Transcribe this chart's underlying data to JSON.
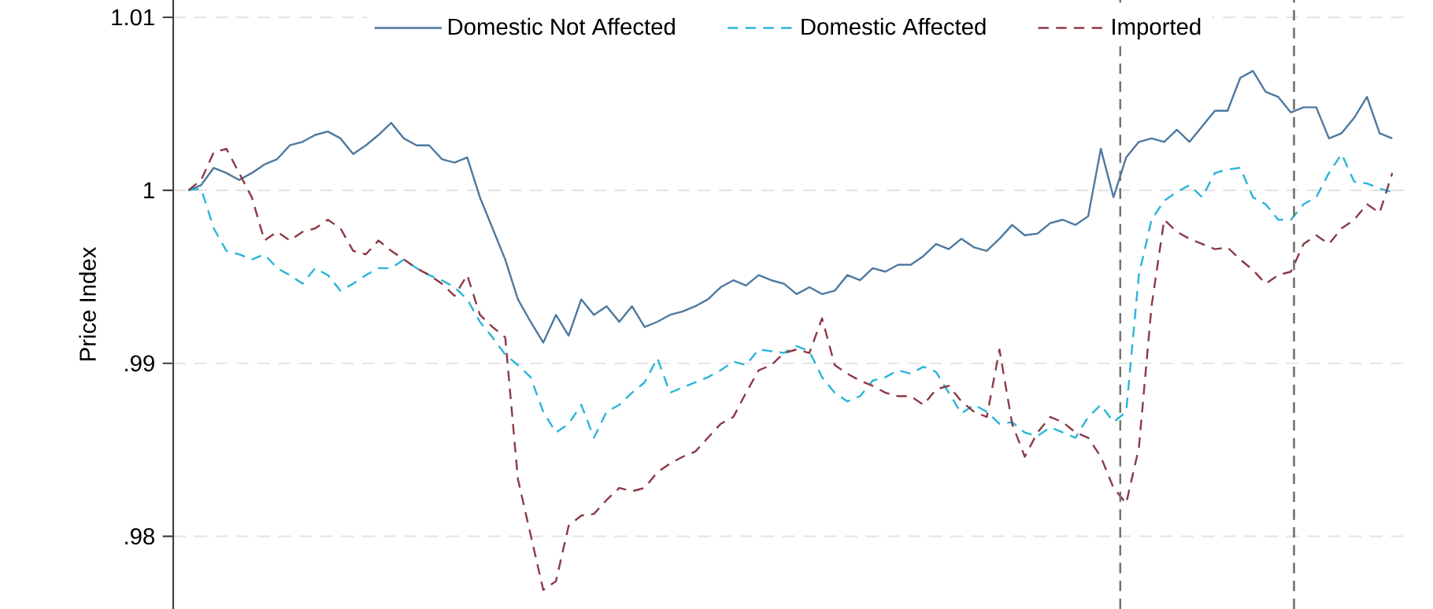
{
  "chart_data": {
    "type": "line",
    "ylabel": "Price Index",
    "categories": [
      null,
      null,
      null,
      null,
      null,
      null,
      null,
      null,
      null,
      null,
      null,
      null,
      null,
      null,
      null,
      null,
      null,
      null,
      null,
      null,
      null,
      null,
      null,
      null,
      null,
      null,
      null,
      null,
      null,
      null,
      null,
      null,
      null,
      null,
      null,
      null,
      null,
      null,
      null,
      null,
      null,
      null,
      null,
      null,
      null,
      null,
      null,
      null,
      null,
      null,
      null,
      null,
      null,
      null,
      null,
      null,
      null,
      null,
      null,
      null,
      null,
      null,
      null,
      null,
      null,
      null,
      null,
      null,
      null,
      null,
      null,
      null,
      null,
      null,
      null,
      null,
      null,
      null,
      null,
      null,
      null,
      null,
      null,
      null,
      null,
      null,
      null,
      null,
      null,
      null,
      null,
      null,
      null,
      null,
      null,
      null
    ],
    "ylim": [
      0.9758,
      1.011
    ],
    "yticks": [
      {
        "value": 0.98,
        "label": ".98"
      },
      {
        "value": 0.99,
        "label": ".99"
      },
      {
        "value": 1,
        "label": "1"
      },
      {
        "value": 1.01,
        "label": "1.01"
      }
    ],
    "tick_labels": "y",
    "grid": "y",
    "legend": "top",
    "marker": "none",
    "series": [
      {
        "name": "Domestic Not Affected",
        "color": "#4e79a0",
        "line_style": "solid",
        "values": [
          1.0,
          1.0003,
          1.0013,
          1.001,
          1.0006,
          1.001,
          1.0015,
          1.0018,
          1.0026,
          1.0028,
          1.0032,
          1.0034,
          1.003,
          1.0021,
          1.0026,
          1.0032,
          1.0039,
          1.003,
          1.0026,
          1.0026,
          1.0018,
          1.0016,
          1.0019,
          0.9996,
          0.9978,
          0.996,
          0.9937,
          0.9924,
          0.9912,
          0.9928,
          0.9916,
          0.9937,
          0.9928,
          0.9933,
          0.9924,
          0.9933,
          0.9921,
          0.9924,
          0.9928,
          0.993,
          0.9933,
          0.9937,
          0.9944,
          0.9948,
          0.9945,
          0.9951,
          0.9948,
          0.9946,
          0.994,
          0.9944,
          0.994,
          0.9942,
          0.9951,
          0.9948,
          0.9955,
          0.9953,
          0.9957,
          0.9957,
          0.9962,
          0.9969,
          0.9966,
          0.9972,
          0.9967,
          0.9965,
          0.9972,
          0.998,
          0.9974,
          0.9975,
          0.9981,
          0.9983,
          0.998,
          0.9985,
          1.0024,
          0.9996,
          1.0019,
          1.0028,
          1.003,
          1.0028,
          1.0035,
          1.0028,
          1.0037,
          1.0046,
          1.0046,
          1.0065,
          1.0069,
          1.0057,
          1.0054,
          1.0045,
          1.0048,
          1.0048,
          1.003,
          1.0033,
          1.0042,
          1.0054,
          1.0033,
          1.003
        ]
      },
      {
        "name": "Domestic Affected",
        "color": "#2ab5d8",
        "line_style": "dashed",
        "values": [
          1.0,
          1.0001,
          0.9978,
          0.9965,
          0.9963,
          0.996,
          0.9963,
          0.9955,
          0.9951,
          0.9946,
          0.9955,
          0.9951,
          0.9942,
          0.9946,
          0.9951,
          0.9955,
          0.9955,
          0.996,
          0.9955,
          0.9951,
          0.9948,
          0.9944,
          0.9937,
          0.9924,
          0.9915,
          0.9905,
          0.9899,
          0.9892,
          0.9872,
          0.986,
          0.9865,
          0.9876,
          0.9857,
          0.9872,
          0.9876,
          0.9883,
          0.9889,
          0.9903,
          0.9883,
          0.9886,
          0.9889,
          0.9892,
          0.9896,
          0.9901,
          0.9899,
          0.9908,
          0.9907,
          0.9906,
          0.991,
          0.9907,
          0.9892,
          0.9883,
          0.9878,
          0.9881,
          0.989,
          0.9892,
          0.9896,
          0.9894,
          0.9898,
          0.9895,
          0.9883,
          0.9871,
          0.9876,
          0.9872,
          0.9865,
          0.9866,
          0.986,
          0.9858,
          0.9863,
          0.986,
          0.9857,
          0.9869,
          0.9876,
          0.9866,
          0.9872,
          0.9951,
          0.9983,
          0.9994,
          0.9999,
          1.0003,
          0.9996,
          1.001,
          1.0012,
          1.0013,
          0.9996,
          0.9992,
          0.9983,
          0.9983,
          0.9992,
          0.9996,
          1.001,
          1.0021,
          1.0005,
          1.0004,
          1.0001,
          0.9999
        ]
      },
      {
        "name": "Imported",
        "color": "#8c3a44",
        "line_style": "dashed",
        "values": [
          1.0,
          1.0006,
          1.0022,
          1.0024,
          1.001,
          0.9996,
          0.9971,
          0.9976,
          0.9971,
          0.9976,
          0.9978,
          0.9983,
          0.9978,
          0.9965,
          0.9963,
          0.9971,
          0.9965,
          0.996,
          0.9955,
          0.9951,
          0.9946,
          0.9939,
          0.9951,
          0.9928,
          0.9921,
          0.9915,
          0.9833,
          0.9801,
          0.9769,
          0.9774,
          0.9806,
          0.9812,
          0.9813,
          0.9821,
          0.9828,
          0.9826,
          0.9828,
          0.9837,
          0.9842,
          0.9846,
          0.9849,
          0.9857,
          0.9865,
          0.9869,
          0.9883,
          0.9896,
          0.9899,
          0.9906,
          0.9908,
          0.9906,
          0.9926,
          0.9899,
          0.9894,
          0.989,
          0.9887,
          0.9883,
          0.9881,
          0.9881,
          0.9876,
          0.9885,
          0.9887,
          0.9878,
          0.9872,
          0.9869,
          0.9908,
          0.9865,
          0.9846,
          0.986,
          0.9869,
          0.9866,
          0.986,
          0.9857,
          0.9846,
          0.9828,
          0.9819,
          0.9851,
          0.9933,
          0.9983,
          0.9976,
          0.9972,
          0.9969,
          0.9966,
          0.9967,
          0.996,
          0.9954,
          0.9946,
          0.9951,
          0.9953,
          0.9969,
          0.9974,
          0.9969,
          0.9978,
          0.9983,
          0.9992,
          0.9987,
          1.001
        ]
      }
    ]
  }
}
